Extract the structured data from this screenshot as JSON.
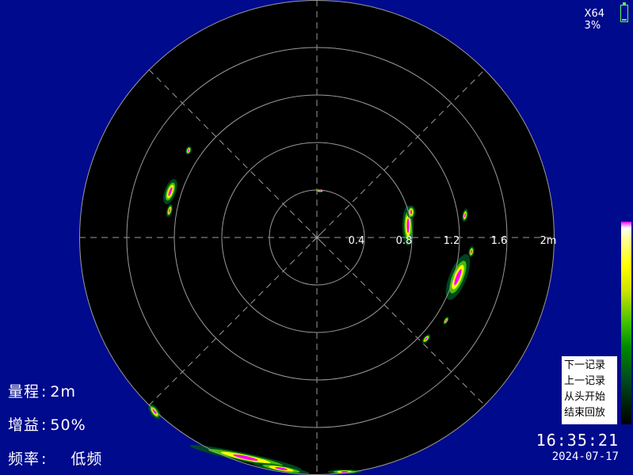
{
  "status": {
    "zoom": "X64",
    "battery_text": "3%",
    "battery_level": 0.03
  },
  "display": {
    "ring_labels": [
      "0.4",
      "0.8",
      "1.2",
      "1.6",
      "2m"
    ],
    "colors": {
      "background": "#000a8c",
      "scope": "#000000",
      "grid": "#9a9a9a",
      "echo_peak": "#ff00ff",
      "echo_high": "#ffff00",
      "echo_mid": "#40c000",
      "echo_low": "#004a20"
    }
  },
  "settings": {
    "range_label": "量程",
    "range_value": "2m",
    "gain_label": "增益",
    "gain_value": "50%",
    "freq_label": "频率",
    "freq_value": "低频",
    "separator": ":"
  },
  "menu": {
    "items": [
      "下一记录",
      "上一记录",
      "从头开始",
      "结束回放"
    ]
  },
  "clock": {
    "time": "16:35:21",
    "date": "2024-07-17"
  }
}
